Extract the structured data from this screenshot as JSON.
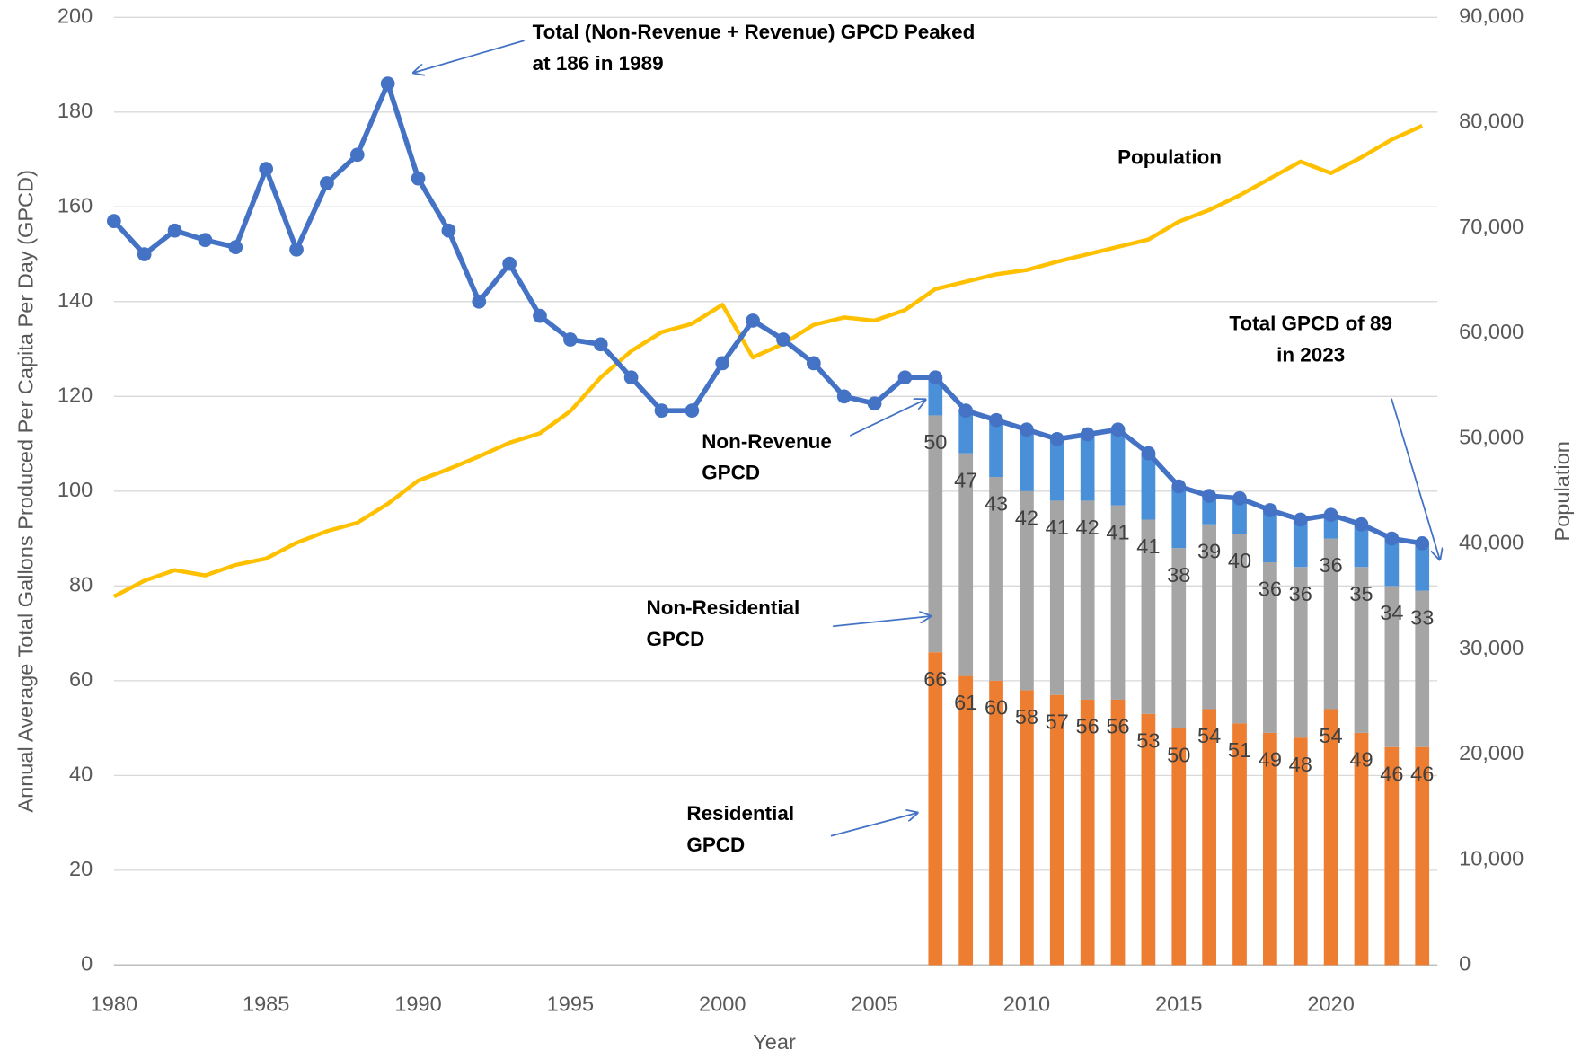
{
  "chart_data": {
    "type": "combo",
    "x_label": "Year",
    "y_label": "Annual Average Total Gallons Produced Per Capita Per Day (GPCD)",
    "y2_label": "Population",
    "x": [
      1980,
      1981,
      1982,
      1983,
      1984,
      1985,
      1986,
      1987,
      1988,
      1989,
      1990,
      1991,
      1992,
      1993,
      1994,
      1995,
      1996,
      1997,
      1998,
      1999,
      2000,
      2001,
      2002,
      2003,
      2004,
      2005,
      2006,
      2007,
      2008,
      2009,
      2010,
      2011,
      2012,
      2013,
      2014,
      2015,
      2016,
      2017,
      2018,
      2019,
      2020,
      2021,
      2022,
      2023
    ],
    "xlim": [
      1980,
      2023.5
    ],
    "xticks": [
      1980,
      1985,
      1990,
      1995,
      2000,
      2005,
      2010,
      2015,
      2020
    ],
    "ylim": [
      0,
      200
    ],
    "yticks": [
      0,
      20,
      40,
      60,
      80,
      100,
      120,
      140,
      160,
      180,
      200
    ],
    "y2lim": [
      0,
      90000
    ],
    "y2ticks": [
      0,
      {
        "value": 10000,
        "label": "10,000"
      },
      {
        "value": 20000,
        "label": "20,000"
      },
      {
        "value": 30000,
        "label": "30,000"
      },
      {
        "value": 40000,
        "label": "40,000"
      },
      {
        "value": 50000,
        "label": "50,000"
      },
      {
        "value": 60000,
        "label": "60,000"
      },
      {
        "value": 70000,
        "label": "70,000"
      },
      {
        "value": 80000,
        "label": "80,000"
      },
      {
        "value": 90000,
        "label": "90,000"
      }
    ],
    "grid": true,
    "series": [
      {
        "type": "bar",
        "color": "#ED7D31",
        "labels": true,
        "values": [
          null,
          null,
          null,
          null,
          null,
          null,
          null,
          null,
          null,
          null,
          null,
          null,
          null,
          null,
          null,
          null,
          null,
          null,
          null,
          null,
          null,
          null,
          null,
          null,
          null,
          null,
          null,
          66,
          61,
          60,
          58,
          57,
          56,
          56,
          53,
          50,
          54,
          51,
          49,
          48,
          54,
          49,
          46,
          46
        ]
      },
      {
        "type": "bar",
        "color": "#A5A5A5",
        "labels": true,
        "values": [
          null,
          null,
          null,
          null,
          null,
          null,
          null,
          null,
          null,
          null,
          null,
          null,
          null,
          null,
          null,
          null,
          null,
          null,
          null,
          null,
          null,
          null,
          null,
          null,
          null,
          null,
          null,
          50,
          47,
          43,
          42,
          41,
          42,
          41,
          41,
          38,
          39,
          40,
          36,
          36,
          36,
          35,
          34,
          33
        ]
      },
      {
        "type": "bar",
        "color": "#4A90D9",
        "labels": false,
        "values": [
          null,
          null,
          null,
          null,
          null,
          null,
          null,
          null,
          null,
          null,
          null,
          null,
          null,
          null,
          null,
          null,
          null,
          null,
          null,
          null,
          null,
          null,
          null,
          null,
          null,
          null,
          null,
          8,
          9,
          12,
          13,
          13,
          14,
          16,
          14,
          13,
          6,
          7.5,
          11,
          10,
          5,
          9,
          10,
          10
        ]
      },
      {
        "type": "line",
        "color": "#FFC000",
        "axis": "y2",
        "markers": false,
        "values": [
          35000,
          36500,
          37500,
          37000,
          38000,
          38600,
          40100,
          41200,
          42000,
          43800,
          46000,
          47100,
          48300,
          49600,
          50500,
          52600,
          55800,
          58300,
          60100,
          60900,
          62700,
          57700,
          59000,
          60800,
          61500,
          61200,
          62200,
          64200,
          64900,
          65600,
          66000,
          66800,
          67500,
          68200,
          68900,
          70600,
          71700,
          73100,
          74700,
          76300,
          75200,
          76700,
          78400,
          79700
        ]
      },
      {
        "type": "line",
        "color": "#4472C4",
        "markers": true,
        "values": [
          157,
          150,
          155,
          153,
          151.5,
          168,
          151,
          165,
          171,
          186,
          166,
          155,
          140,
          148,
          137,
          132,
          131,
          124,
          117,
          117,
          127,
          136,
          132,
          127,
          120,
          118.5,
          124,
          124,
          117,
          115,
          113,
          111,
          112,
          113,
          108,
          101,
          99,
          98.5,
          96,
          94,
          95,
          93,
          90,
          89
        ]
      }
    ],
    "annotations": [
      {
        "lines": [
          "Total (Non-Revenue + Revenue) GPCD Peaked",
          "at 186 in 1989"
        ]
      },
      {
        "lines": [
          "Population"
        ]
      },
      {
        "lines": [
          "Total GPCD of 89",
          "in 2023"
        ]
      },
      {
        "lines": [
          "Non-Revenue",
          "GPCD"
        ]
      },
      {
        "lines": [
          "Non-Residential",
          "GPCD"
        ]
      },
      {
        "lines": [
          "Residential",
          "GPCD"
        ]
      }
    ]
  }
}
